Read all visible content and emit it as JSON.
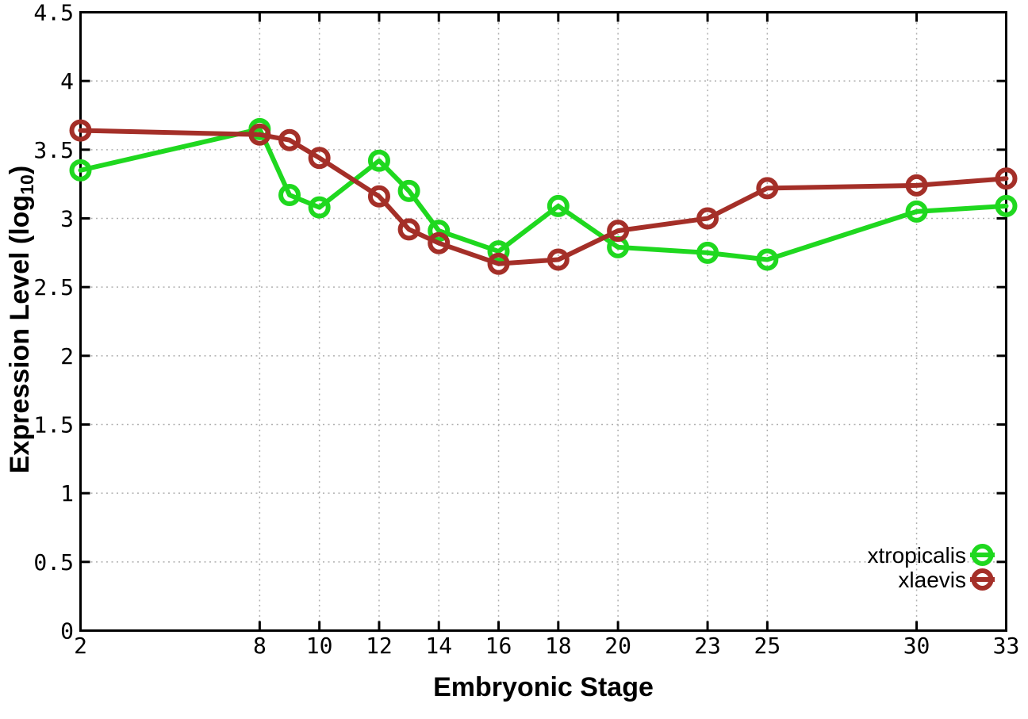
{
  "figure": {
    "background": "#ffffff"
  },
  "chart_data": {
    "type": "line",
    "title": "",
    "xlabel": "Embryonic Stage",
    "ylabel": "Expression Level (log10)",
    "ylabel_parts": {
      "prefix": "Expression Level (log",
      "subscript": "10",
      "suffix": ")"
    },
    "xlim": [
      2,
      33
    ],
    "ylim": [
      0,
      4.5
    ],
    "x_tick_values": [
      2,
      8,
      10,
      12,
      14,
      16,
      18,
      20,
      23,
      25,
      30,
      33
    ],
    "x_tick_labels": [
      "2",
      "8",
      "10",
      "12",
      "14",
      "16",
      "18",
      "20",
      "23",
      "25",
      "30",
      "33"
    ],
    "y_tick_values": [
      0,
      0.5,
      1,
      1.5,
      2,
      2.5,
      3,
      3.5,
      4,
      4.5
    ],
    "y_tick_labels": [
      "0",
      "0.5",
      "1",
      "1.5",
      "2",
      "2.5",
      "3",
      "3.5",
      "4",
      "4.5"
    ],
    "grid": true,
    "legend_position": "bottom-right",
    "x": [
      2,
      8,
      9,
      10,
      12,
      13,
      14,
      16,
      18,
      20,
      23,
      25,
      30,
      33
    ],
    "series": [
      {
        "name": "xtropicalis",
        "color": "#1fd81f",
        "values": [
          3.35,
          3.65,
          3.17,
          3.08,
          3.42,
          3.2,
          2.91,
          2.76,
          3.09,
          2.79,
          2.75,
          2.7,
          3.05,
          3.09
        ]
      },
      {
        "name": "xlaevis",
        "color": "#a42f28",
        "values": [
          3.64,
          3.61,
          3.57,
          3.44,
          3.16,
          2.92,
          2.82,
          2.67,
          2.7,
          2.91,
          3.0,
          3.22,
          3.24,
          3.29
        ]
      }
    ],
    "styles": {
      "grid_color": "#b0b0b0",
      "axis_color": "#000000",
      "tick_label_color": "#000000",
      "line_width": 6,
      "marker_radius": 11,
      "marker_stroke": 6
    }
  }
}
